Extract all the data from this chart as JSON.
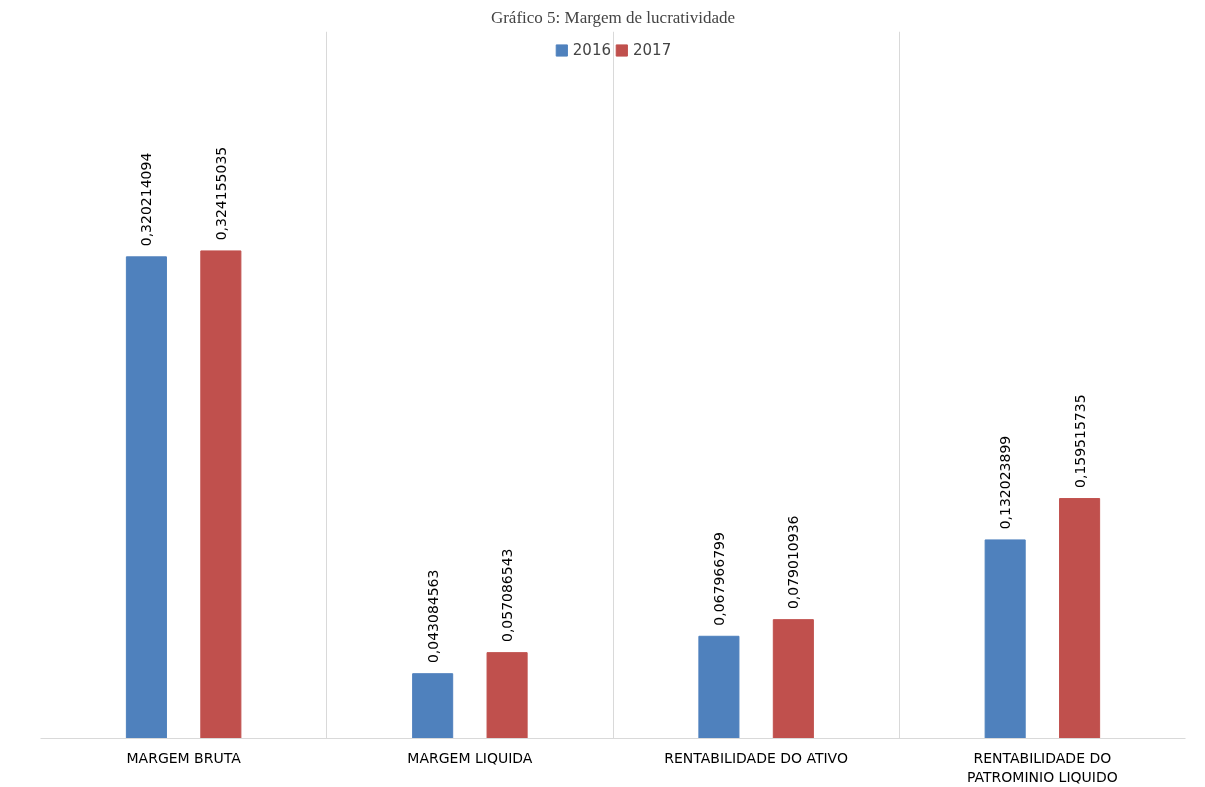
{
  "chart_data": {
    "type": "bar",
    "title": "Gráfico 5: Margem de lucratividade",
    "categories": [
      "MARGEM BRUTA",
      "MARGEM LIQUIDA",
      "RENTABILIDADE DO ATIVO",
      "RENTABILIDADE DO PATROMINIO LIQUIDO"
    ],
    "series": [
      {
        "name": "2016",
        "color": "#4f81bd",
        "values": [
          0.320214094,
          0.043084563,
          0.067966799,
          0.132023899
        ],
        "value_labels": [
          "0,320214094",
          "0,043084563",
          "0,067966799",
          "0,132023899"
        ]
      },
      {
        "name": "2017",
        "color": "#c0504d",
        "values": [
          0.324155035,
          0.057086543,
          0.079010936,
          0.159515735
        ],
        "value_labels": [
          "0,324155035",
          "0,057086543",
          "0,079010936",
          "0,159515735"
        ]
      }
    ],
    "grid": "x",
    "legend": "top"
  }
}
